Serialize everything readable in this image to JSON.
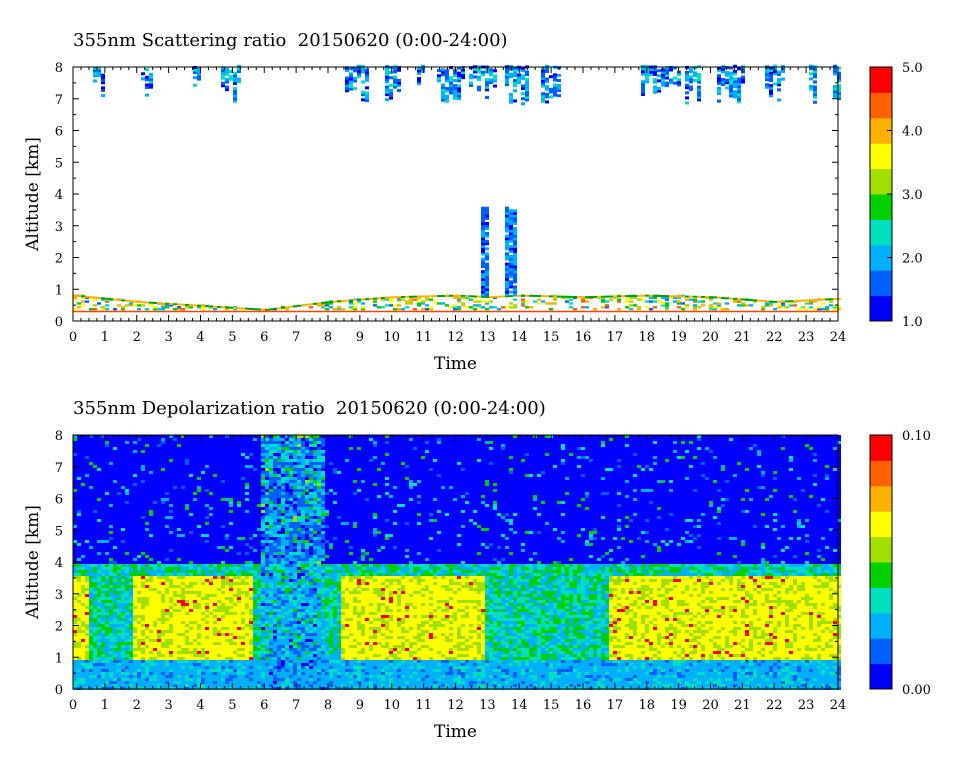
{
  "chart_data": [
    {
      "type": "heatmap",
      "title": "355nm Scattering ratio  20150620 (0:00-24:00)",
      "xlabel": "Time",
      "ylabel": "Altitude [km]",
      "xlim": [
        0,
        24
      ],
      "ylim": [
        0,
        8
      ],
      "x_ticks": [
        "0",
        "1",
        "2",
        "3",
        "4",
        "5",
        "6",
        "7",
        "8",
        "9",
        "10",
        "11",
        "12",
        "13",
        "14",
        "15",
        "16",
        "17",
        "18",
        "19",
        "20",
        "21",
        "22",
        "23",
        "24"
      ],
      "y_ticks": [
        "0",
        "1",
        "2",
        "3",
        "4",
        "5",
        "6",
        "7",
        "8"
      ],
      "colorbar": {
        "min": 1.0,
        "max": 5.0,
        "ticks": [
          "1.0",
          "2.0",
          "3.0",
          "4.0",
          "5.0"
        ]
      },
      "colormap": [
        "#0000ff",
        "#0060ff",
        "#00b0ff",
        "#00e0c0",
        "#00d000",
        "#a0e000",
        "#ffff00",
        "#ffb000",
        "#ff6000",
        "#ff0000"
      ],
      "features": [
        {
          "kind": "ground",
          "altitude_km": 0.3,
          "value": 5.0
        },
        {
          "kind": "boundary_layer_top",
          "altitude_km": [
            0.8,
            0.6,
            0.35,
            0.6,
            0.75,
            0.8,
            0.75,
            0.8,
            0.75,
            0.8,
            0.75,
            0.6,
            0.7
          ],
          "times": [
            0,
            2,
            6,
            8,
            10,
            12,
            13,
            14,
            16,
            18,
            20,
            22,
            24
          ]
        },
        {
          "kind": "cirrus",
          "altitude_km": [
            7.0,
            8.0
          ],
          "time_ranges": [
            [
              0.6,
              0.9
            ],
            [
              2.1,
              2.4
            ],
            [
              3.7,
              4.0
            ],
            [
              4.6,
              5.2
            ],
            [
              8.5,
              9.2
            ],
            [
              9.7,
              10.2
            ],
            [
              10.7,
              11.0
            ],
            [
              11.4,
              12.2
            ],
            [
              12.4,
              13.2
            ],
            [
              13.5,
              14.3
            ],
            [
              14.6,
              15.3
            ],
            [
              17.8,
              19.0
            ],
            [
              19.1,
              19.6
            ],
            [
              20.2,
              21.0
            ],
            [
              21.6,
              22.3
            ],
            [
              23.0,
              23.3
            ],
            [
              23.8,
              24.0
            ]
          ]
        },
        {
          "kind": "convective_column",
          "altitude_km": [
            0.8,
            3.6
          ],
          "time_ranges": [
            [
              12.8,
              13.0
            ],
            [
              13.5,
              13.9
            ]
          ]
        }
      ]
    },
    {
      "type": "heatmap",
      "title": "355nm Depolarization ratio  20150620 (0:00-24:00)",
      "xlabel": "Time",
      "ylabel": "Altitude [km]",
      "xlim": [
        0,
        24
      ],
      "ylim": [
        0,
        8
      ],
      "x_ticks": [
        "0",
        "1",
        "2",
        "3",
        "4",
        "5",
        "6",
        "7",
        "8",
        "9",
        "10",
        "11",
        "12",
        "13",
        "14",
        "15",
        "16",
        "17",
        "18",
        "19",
        "20",
        "21",
        "22",
        "23",
        "24"
      ],
      "y_ticks": [
        "0",
        "1",
        "2",
        "3",
        "4",
        "5",
        "6",
        "7",
        "8"
      ],
      "colorbar": {
        "min": 0.0,
        "max": 0.1,
        "ticks": [
          "0.00",
          "0.10"
        ]
      },
      "colormap": [
        "#0000ff",
        "#0060ff",
        "#00b0ff",
        "#00e0c0",
        "#00d000",
        "#a0e000",
        "#ffff00",
        "#ffb000",
        "#ff6000",
        "#ff0000"
      ],
      "features": [
        {
          "kind": "free_troposphere",
          "altitude_km": [
            4.0,
            8.0
          ],
          "value": 0.005
        },
        {
          "kind": "dust_layer",
          "altitude_km": [
            1.0,
            3.6
          ],
          "value": 0.06,
          "time_ranges": [
            [
              0,
              0.5
            ],
            [
              1.8,
              5.6
            ],
            [
              8.3,
              12.8
            ],
            [
              16.8,
              24.0
            ]
          ]
        },
        {
          "kind": "noisy_period",
          "altitude_km": [
            0,
            8.0
          ],
          "time_ranges": [
            [
              5.8,
              7.8
            ]
          ]
        },
        {
          "kind": "low_layer",
          "altitude_km": [
            0.0,
            1.0
          ],
          "value": 0.02
        }
      ]
    }
  ]
}
